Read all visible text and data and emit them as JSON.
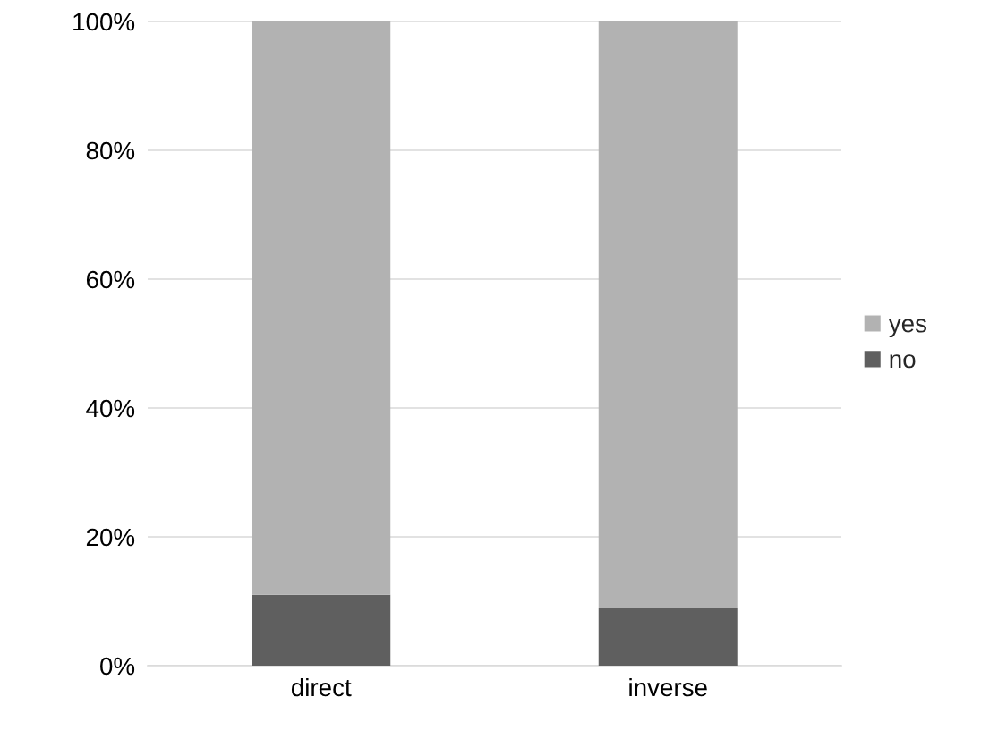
{
  "chart_data": {
    "type": "bar",
    "stacked": true,
    "categories": [
      "direct",
      "inverse"
    ],
    "series": [
      {
        "name": "no",
        "color": "#5f5f5f",
        "values": [
          11,
          9
        ]
      },
      {
        "name": "yes",
        "color": "#b2b2b2",
        "values": [
          89,
          91
        ]
      }
    ],
    "ylim": [
      0,
      100
    ],
    "yticks": [
      {
        "value": 0,
        "label": "0%"
      },
      {
        "value": 20,
        "label": "20%"
      },
      {
        "value": 40,
        "label": "40%"
      },
      {
        "value": 60,
        "label": "60%"
      },
      {
        "value": 80,
        "label": "80%"
      },
      {
        "value": 100,
        "label": "100%"
      }
    ],
    "grid": "y",
    "legend": "right"
  }
}
